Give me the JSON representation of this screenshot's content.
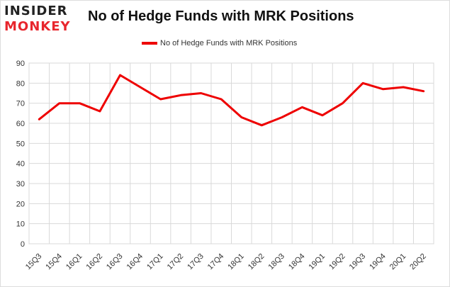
{
  "logo": {
    "line1": "INSIDER",
    "line2": "MONKEY"
  },
  "chart_data": {
    "type": "line",
    "title": "No of Hedge Funds with MRK Positions",
    "categories": [
      "15Q3",
      "15Q4",
      "16Q1",
      "16Q2",
      "16Q3",
      "16Q4",
      "17Q1",
      "17Q2",
      "17Q3",
      "17Q4",
      "18Q1",
      "18Q2",
      "18Q3",
      "18Q4",
      "19Q1",
      "19Q2",
      "19Q3",
      "19Q4",
      "20Q1",
      "20Q2"
    ],
    "series": [
      {
        "name": "No of Hedge Funds with MRK Positions",
        "values": [
          62,
          70,
          70,
          66,
          84,
          78,
          72,
          74,
          75,
          72,
          63,
          59,
          63,
          68,
          64,
          70,
          80,
          77,
          78,
          76
        ]
      }
    ],
    "ylim": [
      0,
      90
    ],
    "yticks": [
      0,
      10,
      20,
      30,
      40,
      50,
      60,
      70,
      80,
      90
    ],
    "grid": true,
    "legend_position": "top-center",
    "line_color": "#ee0000"
  }
}
